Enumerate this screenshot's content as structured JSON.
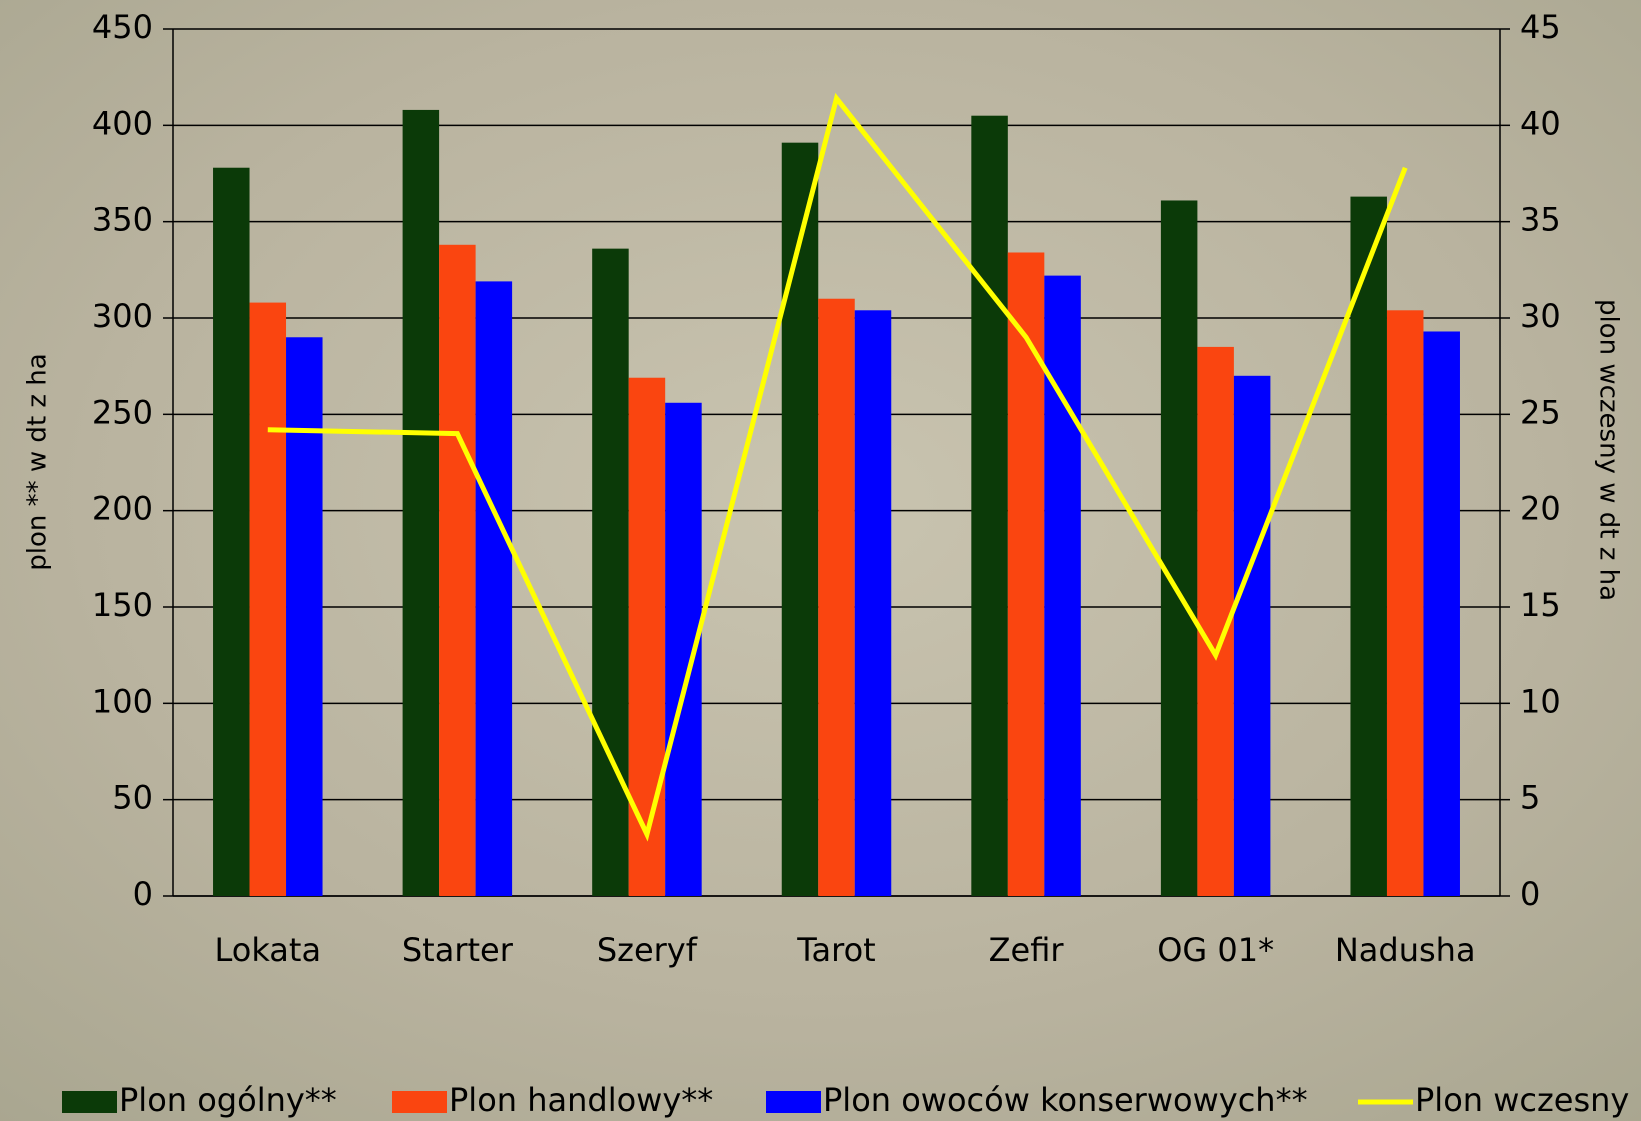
{
  "chart_data": {
    "type": "bar-line",
    "categories": [
      "Lokata",
      "Starter",
      "Szeryf",
      "Tarot",
      "Zefir",
      "OG 01*",
      "Nadusha"
    ],
    "series": [
      {
        "name": "Plon ogólny**",
        "color": "#0b3a08",
        "values": [
          378,
          408,
          336,
          391,
          405,
          361,
          363
        ]
      },
      {
        "name": "Plon handlowy**",
        "color": "#fa4510",
        "values": [
          308,
          338,
          269,
          310,
          334,
          285,
          304
        ]
      },
      {
        "name": "Plon owoców konserwowych**",
        "color": "#0000ff",
        "values": [
          290,
          319,
          256,
          304,
          322,
          270,
          293
        ]
      },
      {
        "name": "Plon wczesny",
        "color": "#ffff00",
        "type": "line",
        "axis": "y2",
        "values": [
          24.2,
          24,
          3.2,
          41.4,
          29,
          12.5,
          37.8
        ]
      }
    ],
    "y_label": "plon ** w dt z ha",
    "y2_label": "plon wczesny w dt z ha",
    "ylim": [
      0,
      450
    ],
    "yticks": [
      0,
      50,
      100,
      150,
      200,
      250,
      300,
      350,
      400,
      450
    ],
    "y2lim": [
      0,
      45
    ],
    "y2ticks": [
      0,
      5,
      10,
      15,
      20,
      25,
      30,
      35,
      40,
      45
    ],
    "grid": true,
    "legend": "bottom"
  }
}
